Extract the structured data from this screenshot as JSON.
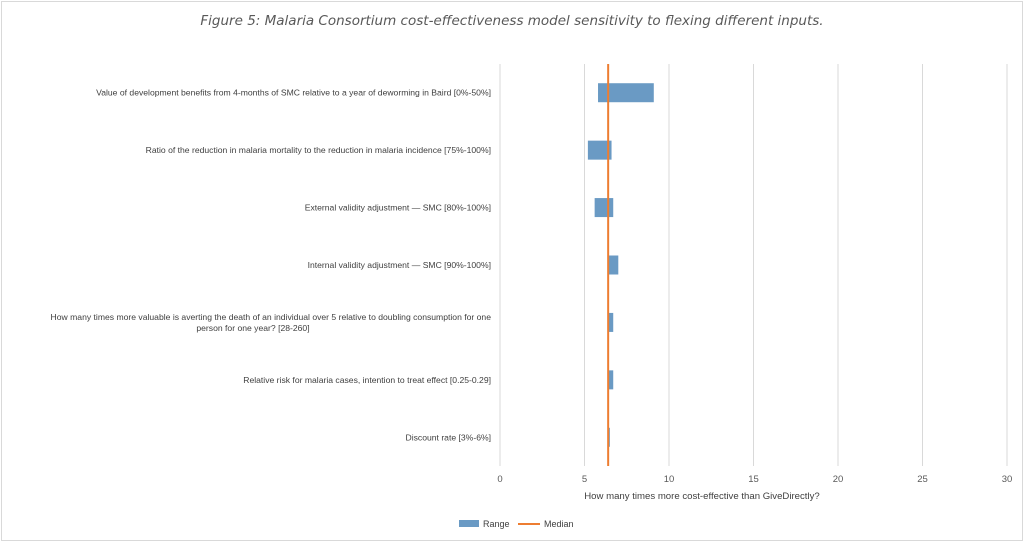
{
  "chart_data": {
    "type": "bar",
    "orientation": "horizontal",
    "title": "Figure 5: Malaria Consortium cost-effectiveness model sensitivity to flexing different inputs.",
    "xlabel": "How many times more cost-effective  than GiveDirectly?",
    "xlim": [
      0,
      30
    ],
    "xticks": [
      0,
      5,
      10,
      15,
      20,
      25,
      30
    ],
    "grid": "vertical",
    "legend_position": "bottom",
    "categories": [
      {
        "lines": [
          "Value of development benefits from 4-months of SMC relative to a year of deworming in Baird [0%-50%]"
        ]
      },
      {
        "lines": [
          "Ratio of the reduction in malaria mortality to the reduction in malaria incidence [75%-100%]"
        ]
      },
      {
        "lines": [
          "External validity adjustment — SMC [80%-100%]"
        ]
      },
      {
        "lines": [
          "Internal validity adjustment — SMC [90%-100%]"
        ]
      },
      {
        "lines": [
          "How many times more valuable is averting the death of an individual over 5 relative to doubling consumption for one",
          "person for one year? [28-260]"
        ]
      },
      {
        "lines": [
          "Relative risk for malaria cases, intention to treat effect [0.25-0.29]"
        ]
      },
      {
        "lines": [
          "Discount rate [3%-6%]"
        ]
      }
    ],
    "series": [
      {
        "name": "Range",
        "type": "range-bar",
        "color": "#6a9ac4",
        "low": [
          5.8,
          5.2,
          5.6,
          6.4,
          6.4,
          6.4,
          6.4
        ],
        "high": [
          9.1,
          6.6,
          6.7,
          7.0,
          6.7,
          6.7,
          6.5
        ]
      },
      {
        "name": "Median",
        "type": "reference-line",
        "color": "#ed7d31",
        "value": 6.4
      }
    ]
  }
}
